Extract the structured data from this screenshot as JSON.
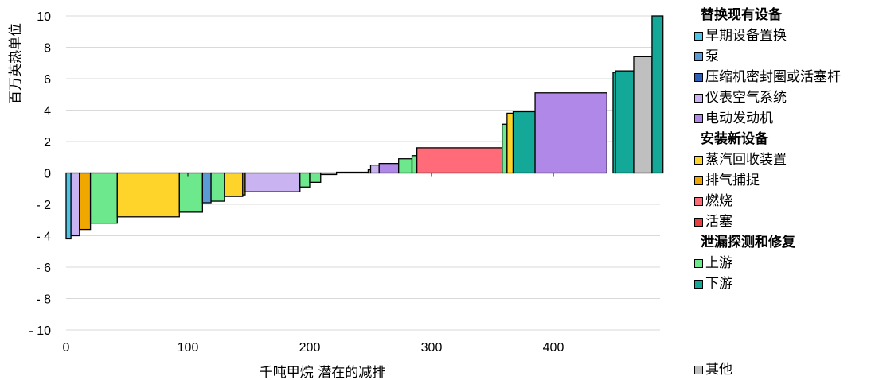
{
  "chart_data": {
    "type": "bar",
    "subtype": "marginal-abatement-cost-curve",
    "xlabel": "千吨甲烷 潜在的减排",
    "ylabel": "百万英热单位",
    "xlim": [
      0,
      490
    ],
    "ylim": [
      -10,
      10
    ],
    "x_ticks": [
      "0",
      "100",
      "200",
      "300",
      "400"
    ],
    "y_ticks": [
      "10",
      "8",
      "6",
      "4",
      "2",
      "0",
      "- 2",
      "- 4",
      "- 6",
      "- 8",
      "- 10"
    ],
    "grid": "horizontal",
    "legend_position": "right",
    "legend": {
      "groups": [
        {
          "heading": "替换现有设备",
          "items": [
            {
              "key": "early_replace",
              "label": "早期设备置换",
              "color": "#4dc3e8"
            },
            {
              "key": "pump",
              "label": "泵",
              "color": "#5b9bd5"
            },
            {
              "key": "compressor",
              "label": "压缩机密封圈或活塞杆",
              "color": "#2e5fb8"
            },
            {
              "key": "instrument_air",
              "label": "仪表空气系统",
              "color": "#c9b3f0"
            },
            {
              "key": "electric_motor",
              "label": "电动发动机",
              "color": "#b088e8"
            }
          ]
        },
        {
          "heading": "安装新设备",
          "items": [
            {
              "key": "vapor_recovery",
              "label": "蒸汽回收装置",
              "color": "#ffd42a"
            },
            {
              "key": "vent_capture",
              "label": "排气捕捉",
              "color": "#f0a800"
            },
            {
              "key": "flare",
              "label": "燃烧",
              "color": "#ff6b78"
            },
            {
              "key": "piston",
              "label": "活塞",
              "color": "#e84040"
            }
          ]
        },
        {
          "heading": "泄漏探测和修复",
          "items": [
            {
              "key": "upstream",
              "label": "上游",
              "color": "#6ee88c"
            },
            {
              "key": "downstream",
              "label": "下游",
              "color": "#14a898"
            }
          ]
        }
      ],
      "other": {
        "key": "other",
        "label": "其他",
        "color": "#bfbfbf"
      }
    },
    "bars": [
      {
        "x0": 0,
        "x1": 4,
        "value": -4.2,
        "category": "early_replace"
      },
      {
        "x0": 4,
        "x1": 11,
        "value": -4.0,
        "category": "instrument_air"
      },
      {
        "x0": 11,
        "x1": 20,
        "value": -3.6,
        "category": "vent_capture"
      },
      {
        "x0": 20,
        "x1": 42,
        "value": -3.2,
        "category": "upstream"
      },
      {
        "x0": 42,
        "x1": 93,
        "value": -2.8,
        "category": "vapor_recovery"
      },
      {
        "x0": 93,
        "x1": 112,
        "value": -2.5,
        "category": "upstream"
      },
      {
        "x0": 112,
        "x1": 119,
        "value": -1.9,
        "category": "pump"
      },
      {
        "x0": 119,
        "x1": 130,
        "value": -1.8,
        "category": "upstream"
      },
      {
        "x0": 130,
        "x1": 145,
        "value": -1.5,
        "category": "vapor_recovery"
      },
      {
        "x0": 145,
        "x1": 147,
        "value": -1.4,
        "category": "vapor_recovery"
      },
      {
        "x0": 147,
        "x1": 192,
        "value": -1.2,
        "category": "instrument_air"
      },
      {
        "x0": 192,
        "x1": 200,
        "value": -0.9,
        "category": "upstream"
      },
      {
        "x0": 200,
        "x1": 209,
        "value": -0.6,
        "category": "upstream"
      },
      {
        "x0": 209,
        "x1": 222,
        "value": -0.1,
        "category": "upstream"
      },
      {
        "x0": 222,
        "x1": 248,
        "value": 0.05,
        "category": "upstream"
      },
      {
        "x0": 248,
        "x1": 250,
        "value": 0.2,
        "category": "instrument_air"
      },
      {
        "x0": 250,
        "x1": 257,
        "value": 0.5,
        "category": "instrument_air"
      },
      {
        "x0": 257,
        "x1": 273,
        "value": 0.6,
        "category": "electric_motor"
      },
      {
        "x0": 273,
        "x1": 284,
        "value": 0.9,
        "category": "upstream"
      },
      {
        "x0": 284,
        "x1": 288,
        "value": 1.1,
        "category": "upstream"
      },
      {
        "x0": 288,
        "x1": 358,
        "value": 1.6,
        "category": "flare"
      },
      {
        "x0": 358,
        "x1": 362,
        "value": 3.1,
        "category": "upstream"
      },
      {
        "x0": 362,
        "x1": 367,
        "value": 3.8,
        "category": "vapor_recovery"
      },
      {
        "x0": 367,
        "x1": 385,
        "value": 3.9,
        "category": "downstream"
      },
      {
        "x0": 385,
        "x1": 444,
        "value": 5.1,
        "category": "electric_motor"
      },
      {
        "x0": 449,
        "x1": 451,
        "value": 6.4,
        "category": "downstream"
      },
      {
        "x0": 451,
        "x1": 466,
        "value": 6.5,
        "category": "downstream"
      },
      {
        "x0": 466,
        "x1": 481,
        "value": 7.4,
        "category": "other"
      },
      {
        "x0": 481,
        "x1": 490,
        "value": 10.0,
        "category": "downstream"
      }
    ]
  }
}
